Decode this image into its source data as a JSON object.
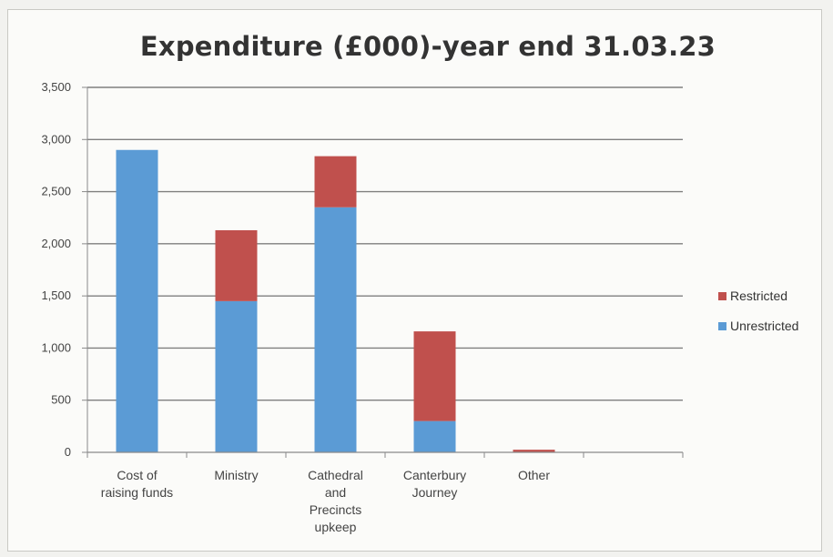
{
  "chart_data": {
    "type": "bar",
    "stacked": true,
    "title": "Expenditure (£000)-year end 31.03.23",
    "categories": [
      [
        "Cost of",
        "raising funds"
      ],
      [
        "Ministry"
      ],
      [
        "Cathedral",
        "and",
        "Precincts",
        "upkeep"
      ],
      [
        "Canterbury",
        "Journey"
      ],
      [
        "Other"
      ],
      [
        ""
      ]
    ],
    "series": [
      {
        "name": "Unrestricted",
        "color": "#5b9bd5",
        "values": [
          2900,
          1450,
          2350,
          300,
          0,
          0
        ]
      },
      {
        "name": "Restricted",
        "color": "#c0504d",
        "values": [
          0,
          680,
          490,
          860,
          25,
          0
        ]
      }
    ],
    "ylim": [
      0,
      3500
    ],
    "yticks": [
      "0",
      "500",
      "1,000",
      "1,500",
      "2,000",
      "2,500",
      "3,000",
      "3,500"
    ],
    "ytick_values": [
      0,
      500,
      1000,
      1500,
      2000,
      2500,
      3000,
      3500
    ],
    "grid": true,
    "legend": {
      "position": "right",
      "entries": [
        "Restricted",
        "Unrestricted"
      ]
    }
  }
}
